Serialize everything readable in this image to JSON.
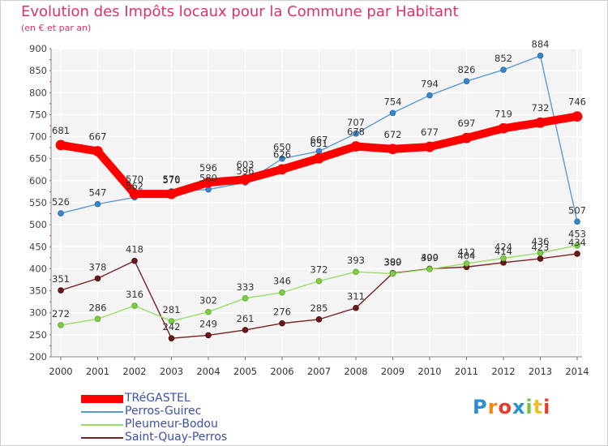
{
  "header": {
    "title": "Evolution des Impôts locaux pour la Commune par Habitant",
    "subtitle": "(en € et par an)"
  },
  "chart_data": {
    "type": "line",
    "title": "Evolution des Impôts locaux pour la Commune par Habitant",
    "subtitle": "(en € et par an)",
    "xlabel": "",
    "ylabel": "",
    "x": [
      "2000",
      "2001",
      "2002",
      "2003",
      "2004",
      "2005",
      "2006",
      "2007",
      "2008",
      "2009",
      "2010",
      "2011",
      "2012",
      "2013",
      "2014"
    ],
    "ylim": [
      200,
      900
    ],
    "yticks": [
      200,
      250,
      300,
      350,
      400,
      450,
      500,
      550,
      600,
      650,
      700,
      750,
      800,
      850,
      900
    ],
    "grid": true,
    "legend_position": "bottom-left",
    "series": [
      {
        "name": "TRéGASTEL",
        "color": "#ff0000",
        "values": [
          681,
          667,
          570,
          570,
          596,
          603,
          626,
          651,
          678,
          672,
          677,
          697,
          719,
          732,
          746
        ],
        "labels": [
          "681",
          "667",
          "570",
          "570",
          "596",
          "603",
          "626",
          "651",
          "678",
          "672",
          "677",
          "697",
          "719",
          "732",
          "746"
        ]
      },
      {
        "name": "Perros-Guirec",
        "color": "#5b9bd5",
        "values": [
          526,
          547,
          562,
          576,
          580,
          596,
          650,
          667,
          707,
          754,
          794,
          826,
          852,
          884,
          507
        ],
        "labels": [
          "526",
          "547",
          "562",
          "576",
          "580",
          "596",
          "650",
          "667",
          "707",
          "754",
          "794",
          "826",
          "852",
          "884",
          "507"
        ]
      },
      {
        "name": "Pleumeur-Bodou",
        "color": "#99dd66",
        "values": [
          272,
          286,
          316,
          281,
          302,
          333,
          346,
          372,
          393,
          389,
          399,
          412,
          424,
          436,
          453
        ],
        "labels": [
          "272",
          "286",
          "316",
          "281",
          "302",
          "333",
          "346",
          "372",
          "393",
          "389",
          "399",
          "412",
          "424",
          "436",
          "453"
        ]
      },
      {
        "name": "Saint-Quay-Perros",
        "color": "#7a2020",
        "values": [
          351,
          378,
          418,
          242,
          249,
          261,
          276,
          285,
          311,
          390,
          400,
          404,
          414,
          423,
          434
        ],
        "labels": [
          "351",
          "378",
          "418",
          "242",
          "249",
          "261",
          "276",
          "285",
          "311",
          "390",
          "400",
          "404",
          "414",
          "423",
          "434"
        ]
      }
    ]
  },
  "logo": {
    "letters": [
      "P",
      "r",
      "o",
      "x",
      "i",
      "t",
      "i"
    ],
    "colors": [
      "#2a8fd6",
      "#f28a1a",
      "#e63a2e",
      "#2a8fd6",
      "#7cc242",
      "#f2c01a",
      "#e63a2e"
    ]
  }
}
